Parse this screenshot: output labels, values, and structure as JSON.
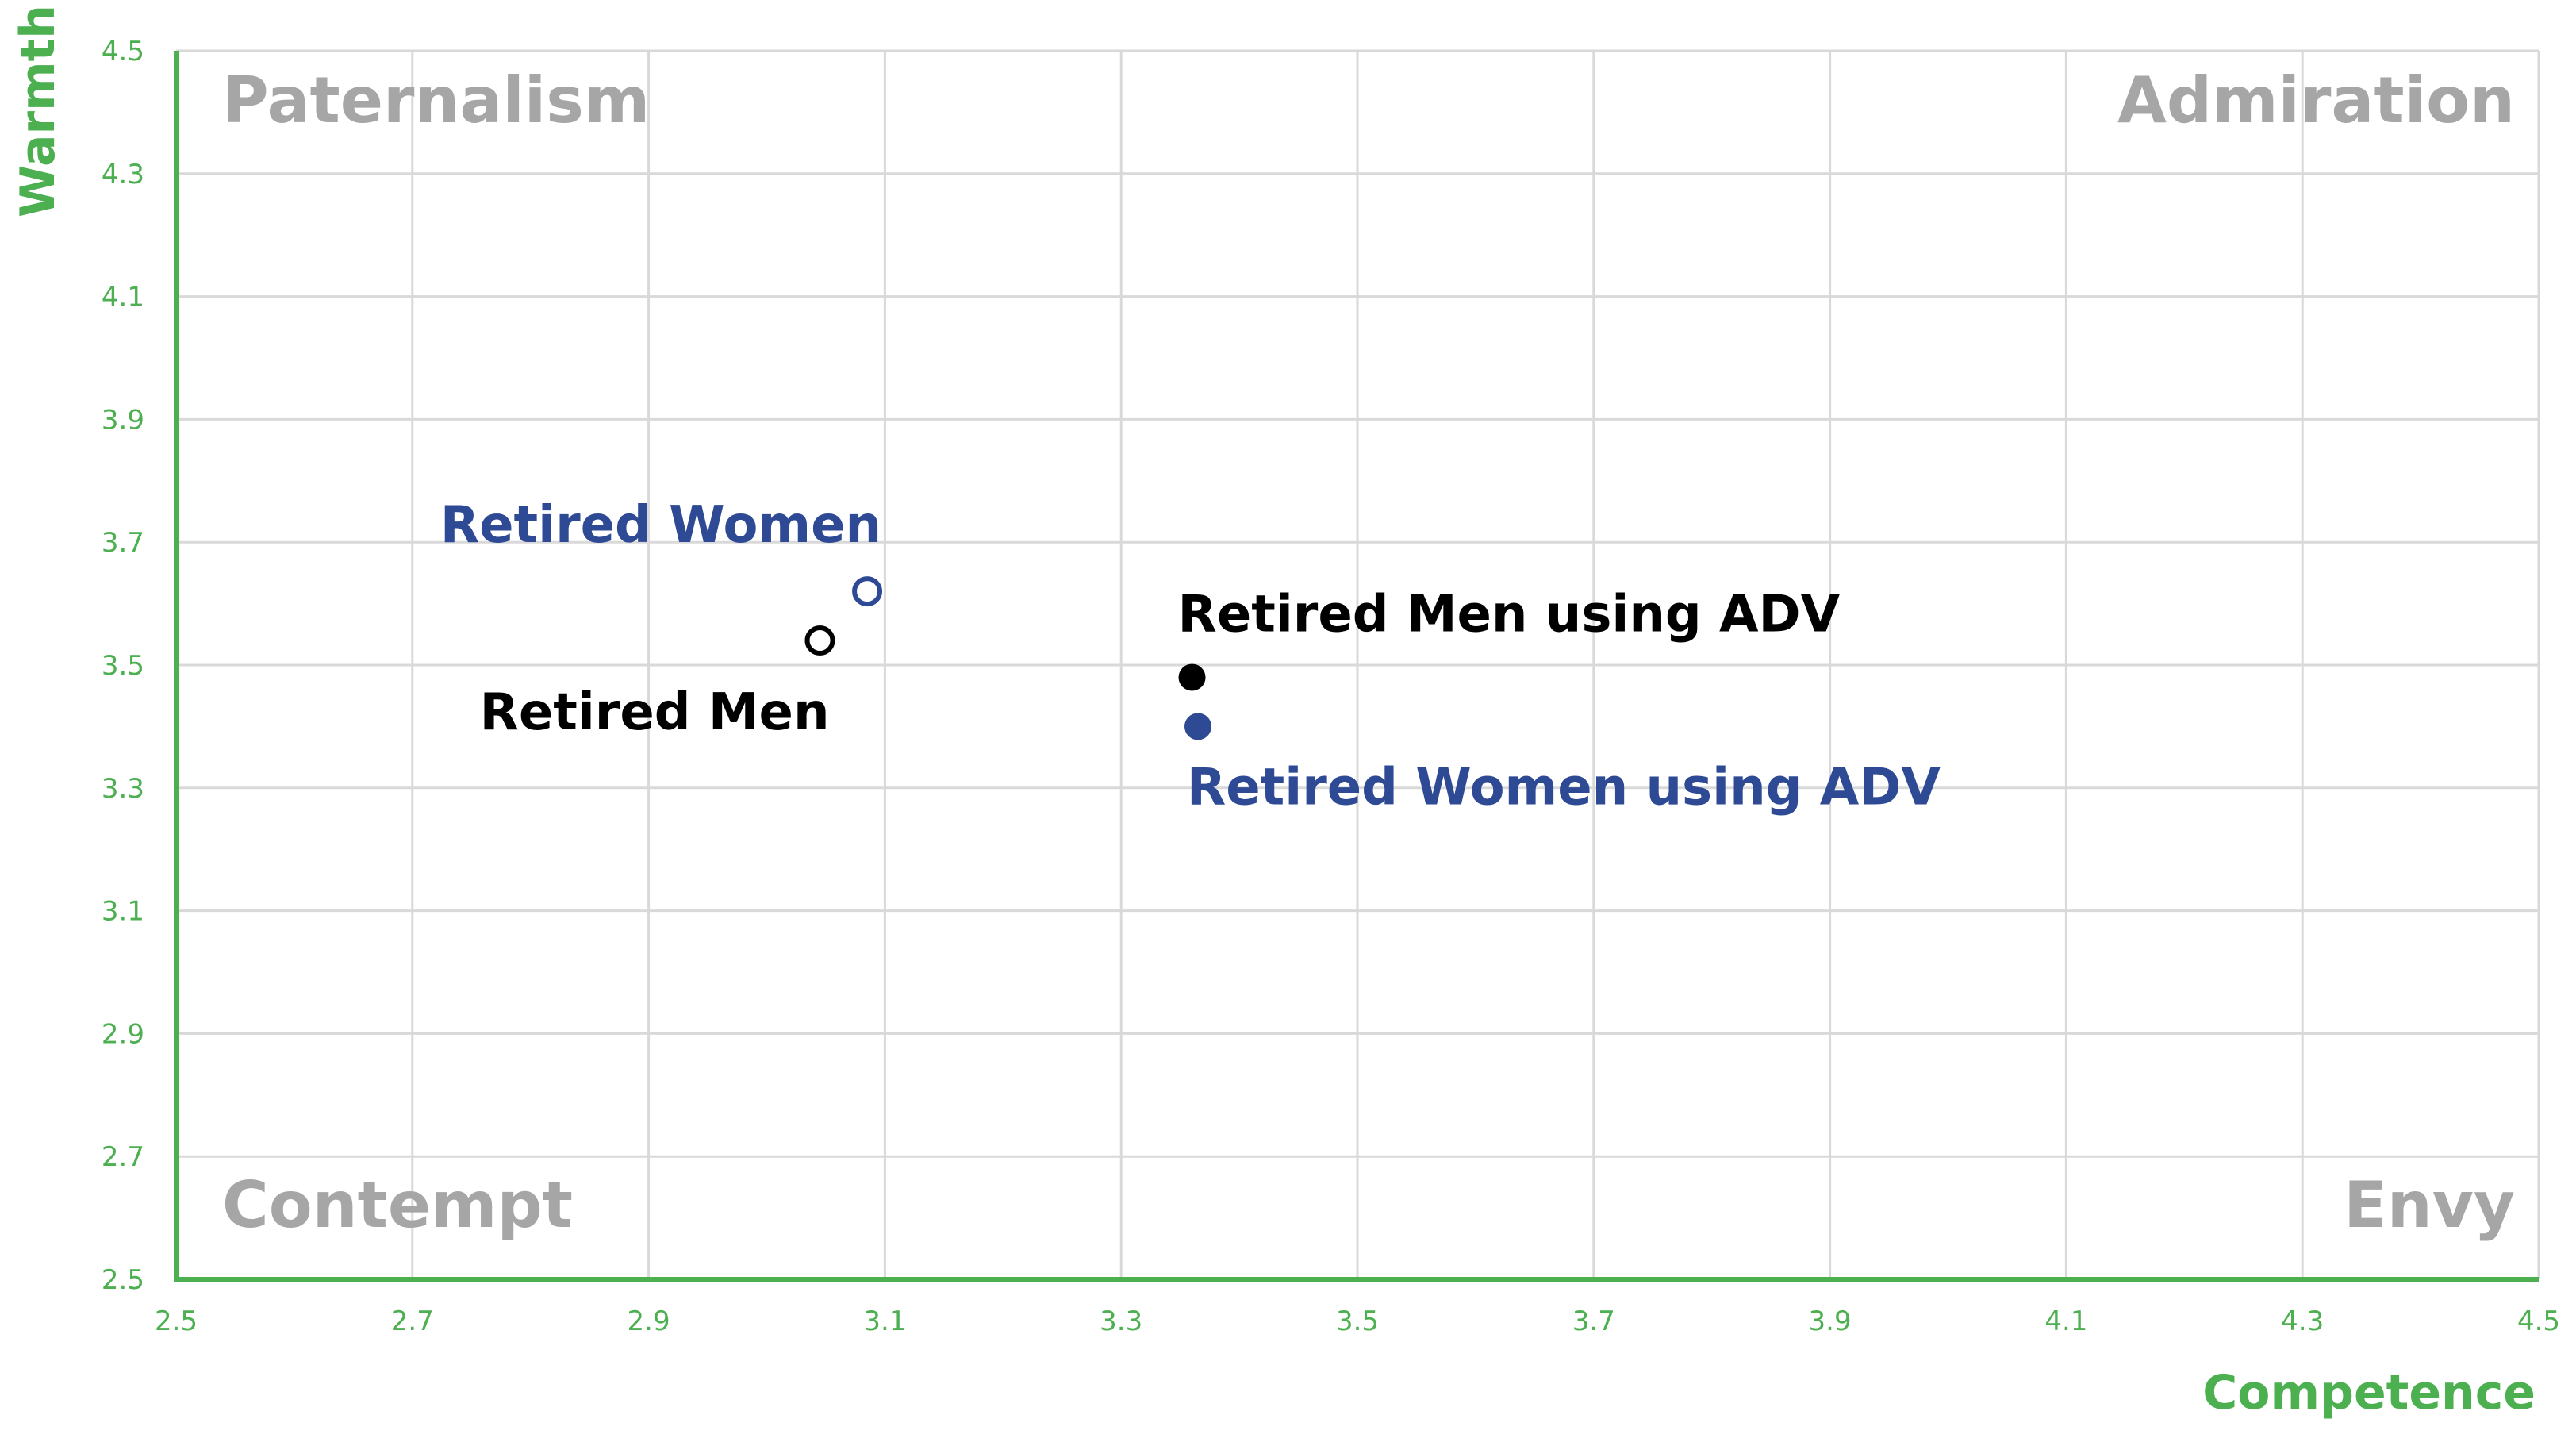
{
  "chart_data": {
    "type": "scatter",
    "title": "",
    "xlabel": "Competence",
    "ylabel": "Warmth",
    "xlim": [
      2.5,
      4.5
    ],
    "ylim": [
      2.5,
      4.5
    ],
    "x_ticks": [
      2.5,
      2.7,
      2.9,
      3.1,
      3.3,
      3.5,
      3.7,
      3.9,
      4.1,
      4.3,
      4.5
    ],
    "y_ticks": [
      2.5,
      2.7,
      2.9,
      3.1,
      3.3,
      3.5,
      3.7,
      3.9,
      4.1,
      4.3,
      4.5
    ],
    "x_tick_labels": [
      "2.5",
      "2.7",
      "2.9",
      "3.1",
      "3.3",
      "3.5",
      "3.7",
      "3.9",
      "4.1",
      "4.3",
      "4.5"
    ],
    "y_tick_labels": [
      "2.5",
      "2.7",
      "2.9",
      "3.1",
      "3.3",
      "3.5",
      "3.7",
      "3.9",
      "4.1",
      "4.3",
      "4.5"
    ],
    "grid": true,
    "quadrant_labels": {
      "top_left": "Paternalism",
      "top_right": "Admiration",
      "bottom_left": "Contempt",
      "bottom_right": "Envy"
    },
    "points": [
      {
        "label": "Retired Women",
        "x": 3.085,
        "y": 3.62,
        "marker": "hollow",
        "color": "#2e4a94",
        "label_position": "above-left"
      },
      {
        "label": "Retired Men",
        "x": 3.045,
        "y": 3.54,
        "marker": "hollow",
        "color": "#000000",
        "label_position": "below-left"
      },
      {
        "label": "Retired Men using ADV",
        "x": 3.36,
        "y": 3.48,
        "marker": "filled",
        "color": "#000000",
        "label_position": "above-right"
      },
      {
        "label": "Retired Women using ADV",
        "x": 3.365,
        "y": 3.4,
        "marker": "filled",
        "color": "#2e4a94",
        "label_position": "below-right"
      }
    ]
  },
  "colors": {
    "axis": "#4caf50",
    "grid": "#d9d9d9",
    "quadrant_text": "#a6a6a6",
    "men": "#000000",
    "women": "#2e4a94"
  }
}
